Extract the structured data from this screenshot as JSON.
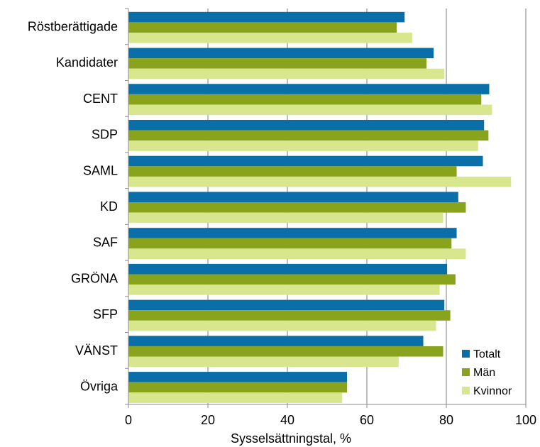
{
  "colors": {
    "totalt": "#0a6ea9",
    "man": "#8aa31c",
    "kvinnor": "#d8e68d",
    "grid": "#7f7f7f",
    "axis": "#8c8c8c"
  },
  "chart_data": {
    "type": "bar",
    "orientation": "horizontal",
    "categories": [
      "Röstberättigade",
      "Kandidater",
      "CENT",
      "SDP",
      "SAML",
      "KD",
      "SAF",
      "GRÖNA",
      "SFP",
      "VÄNST",
      "Övriga"
    ],
    "series": [
      {
        "name": "Totalt",
        "color_key": "totalt",
        "values": [
          69.5,
          76.8,
          90.8,
          89.5,
          89.2,
          83.0,
          82.6,
          80.2,
          79.5,
          74.2,
          55.0
        ]
      },
      {
        "name": "Män",
        "color_key": "man",
        "values": [
          67.5,
          75.0,
          88.8,
          90.6,
          82.6,
          84.9,
          81.3,
          82.3,
          81.0,
          79.2,
          55.0
        ]
      },
      {
        "name": "Kvinnor",
        "color_key": "kvinnor",
        "values": [
          71.4,
          79.5,
          91.5,
          88.0,
          96.3,
          79.2,
          84.9,
          78.3,
          77.4,
          68.0,
          53.8
        ]
      }
    ],
    "xlabel": "Sysselsättningstal, %",
    "ylabel": "",
    "xlim": [
      0,
      100
    ],
    "xticks": [
      0,
      20,
      40,
      60,
      80,
      100
    ],
    "xtick_labels": [
      "0",
      "20",
      "40",
      "60",
      "80",
      "100"
    ],
    "grid": "vertical",
    "legend_position": "bottom-right"
  }
}
